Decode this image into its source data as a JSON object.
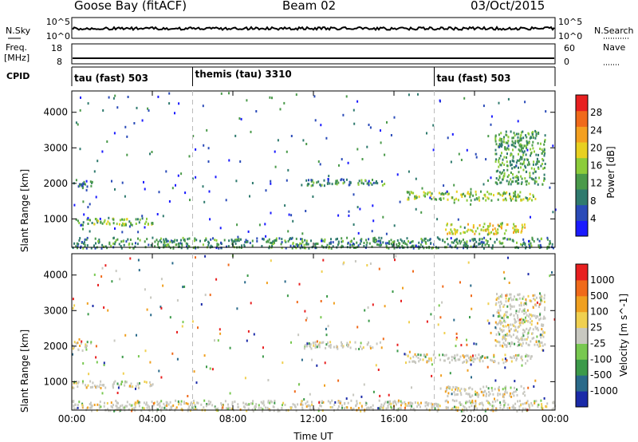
{
  "header": {
    "station": "Goose Bay (fitACF)",
    "beam": "Beam 02",
    "date": "03/Oct/2015"
  },
  "top_panels": {
    "nsky_label": "N.Sky",
    "nsky_ticks": [
      "10^5",
      "10^0"
    ],
    "nsearch_label": "N.Search",
    "nsearch_ticks": [
      "10^5",
      "10^0"
    ],
    "freq_label": "Freq.",
    "freq_unit": "[MHz]",
    "freq_ticks": [
      "18",
      "8"
    ],
    "nave_label": "Nave",
    "nave_ticks": [
      "60",
      "0"
    ],
    "cpid_label": "CPID",
    "cpid_segments": [
      {
        "name": "tau (fast) 503",
        "start_hour": 0
      },
      {
        "name": "themis (tau) 3310",
        "start_hour": 6
      },
      {
        "name": "tau (fast) 503",
        "start_hour": 18
      }
    ]
  },
  "chart_data": [
    {
      "type": "heatmap",
      "name": "power-panel",
      "ylabel": "Slant Range [km]",
      "x_range_hours": [
        0,
        24
      ],
      "ylim": [
        200,
        4600
      ],
      "y_ticks": [
        1000,
        2000,
        3000,
        4000
      ],
      "colorbar": {
        "label": "Power [dB]",
        "ticks": [
          4,
          8,
          12,
          16,
          20,
          24,
          28
        ],
        "colors": [
          "#1a1aff",
          "#2a4bb8",
          "#2f7a6e",
          "#4a9a4a",
          "#8ccc3a",
          "#e8d020",
          "#f4a020",
          "#f06a1a",
          "#e82020"
        ]
      },
      "echo_bands": [
        {
          "start_hour": 0.0,
          "end_hour": 1.0,
          "range_lo": 1900,
          "range_hi": 2150,
          "power": 8
        },
        {
          "start_hour": 0.0,
          "end_hour": 4.0,
          "range_lo": 850,
          "range_hi": 1050,
          "power": 14
        },
        {
          "start_hour": 0.0,
          "end_hour": 24.0,
          "range_lo": 200,
          "range_hi": 500,
          "power": 10
        },
        {
          "start_hour": 11.5,
          "end_hour": 15.5,
          "range_lo": 1950,
          "range_hi": 2150,
          "power": 10
        },
        {
          "start_hour": 16.5,
          "end_hour": 23.0,
          "range_lo": 1550,
          "range_hi": 1800,
          "power": 16
        },
        {
          "start_hour": 18.5,
          "end_hour": 22.5,
          "range_lo": 600,
          "range_hi": 900,
          "power": 20
        },
        {
          "start_hour": 21.0,
          "end_hour": 23.5,
          "range_lo": 2000,
          "range_hi": 3500,
          "power": 12
        }
      ]
    },
    {
      "type": "heatmap",
      "name": "velocity-panel",
      "ylabel": "Slant Range [km]",
      "xlabel": "Time UT",
      "x_range_hours": [
        0,
        24
      ],
      "x_ticks": [
        "00:00",
        "04:00",
        "08:00",
        "12:00",
        "16:00",
        "20:00",
        "00:00"
      ],
      "ylim": [
        200,
        4600
      ],
      "y_ticks": [
        1000,
        2000,
        3000,
        4000
      ],
      "colorbar": {
        "label": "Velocity [m s^-1]",
        "ticks": [
          "1000",
          "500",
          "100",
          "25",
          "-25",
          "-100",
          "-500",
          "-1000"
        ],
        "colors": [
          "#1a2aa8",
          "#2a6a8a",
          "#3c9a4a",
          "#78c850",
          "#c8c8c0",
          "#f0d050",
          "#f0a020",
          "#f06a1a",
          "#e82020"
        ]
      }
    }
  ]
}
